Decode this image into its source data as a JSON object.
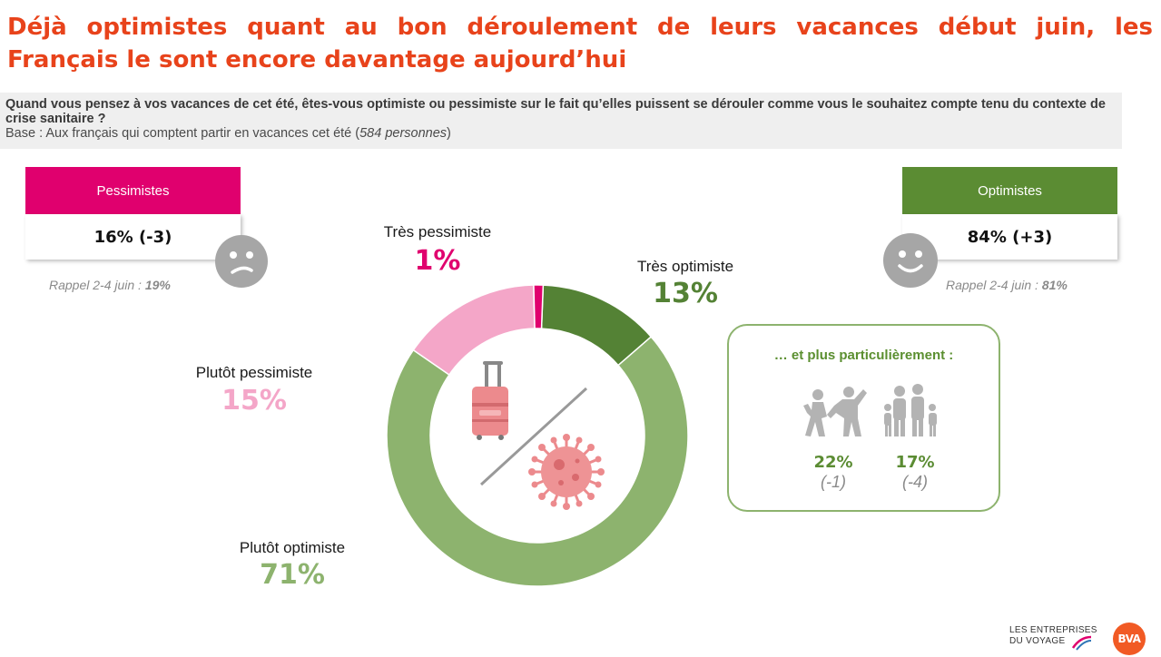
{
  "title": {
    "line1": "Déjà optimistes quant au bon déroulement de leurs vacances début juin, les",
    "line2": "Français le sont encore davantage aujourd’hui"
  },
  "question": {
    "text": "Quand vous pensez à vos vacances de cet été, êtes-vous optimiste ou pessimiste sur le fait qu’elles puissent se dérouler comme vous le souhaitez compte tenu du contexte de crise sanitaire ?",
    "base_prefix": "Base : Aux français qui comptent partir en vacances cet été (",
    "base_count": "584 personnes",
    "base_suffix": ")"
  },
  "pessimistes": {
    "label": "Pessimistes",
    "value": "16% (-3)",
    "rappel_prefix": "Rappel 2-4 juin : ",
    "rappel_value": "19%",
    "color": "#e0006e",
    "icon": "sad-face-icon"
  },
  "optimistes": {
    "label": "Optimistes",
    "value": "84% (+3)",
    "rappel_prefix": "Rappel 2-4 juin : ",
    "rappel_value": "81%",
    "color": "#5b8c33",
    "icon": "happy-face-icon"
  },
  "chart_data": {
    "type": "pie",
    "variant": "donut",
    "categories": [
      "Très optimiste",
      "Plutôt optimiste",
      "Plutôt pessimiste",
      "Très pessimiste"
    ],
    "values": [
      13,
      71,
      15,
      1
    ],
    "value_labels": [
      "13%",
      "71%",
      "15%",
      "1%"
    ],
    "colors": [
      "#548235",
      "#8db36e",
      "#f4a6c8",
      "#e0006e"
    ],
    "center_icons": [
      "suitcase-icon",
      "virus-icon"
    ]
  },
  "particular": {
    "title": "… et plus particulièrement :",
    "items": [
      {
        "icon": "dancing-people-icon",
        "value": "22%",
        "delta": "(-1)",
        "color": "#5b8c33"
      },
      {
        "icon": "family-icon",
        "value": "17%",
        "delta": "(-4)",
        "color": "#5b8c33"
      }
    ]
  },
  "logos": {
    "entreprises_line1": "LES ENTREPRISES",
    "entreprises_line2": "DU VOYAGE",
    "bva": "BVA",
    "bva_color": "#f15a24"
  }
}
